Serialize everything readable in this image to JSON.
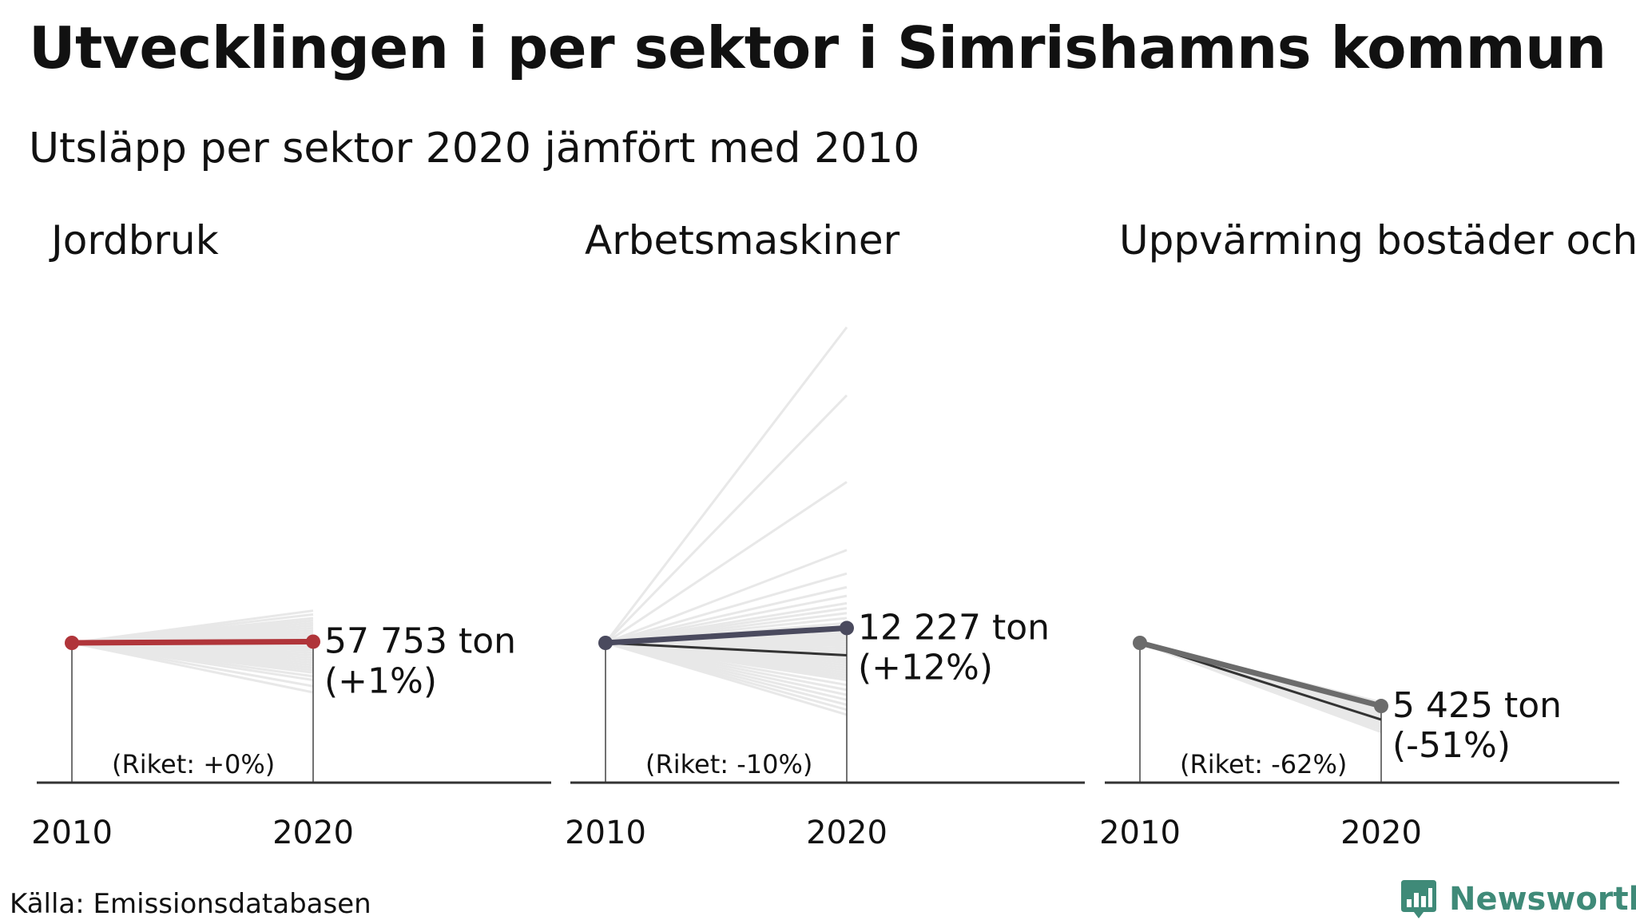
{
  "title": "Utvecklingen i per sektor i Simrishamns kommun",
  "subtitle": "Utsläpp per sektor 2020 jämfört med 2010",
  "source": "Källa: Emissionsdatabasen",
  "brand": {
    "name": "Newsworthy",
    "color": "#3f8a78",
    "icon": "bar-chart-logo-icon"
  },
  "colors": {
    "background_lines": "#e8e8e8",
    "axis": "#333333",
    "national": "#333333"
  },
  "chart_data": [
    {
      "type": "line",
      "title": "Jordbruk",
      "x": [
        "2010",
        "2020"
      ],
      "change_pct": 1,
      "national_change_pct": 0,
      "value_label": "57 753 ton",
      "change_label": "(+1%)",
      "national_label": "(Riket: +0%)",
      "color": "#b0353a",
      "other_municipalities_pct": [
        -40,
        -35,
        -30,
        -27,
        -24,
        -22,
        -20,
        -18,
        -16,
        -14,
        -12,
        -10,
        -8,
        -6,
        -5,
        -4,
        -3,
        -2,
        -1,
        0,
        1,
        2,
        3,
        4,
        5,
        6,
        8,
        10,
        12,
        14,
        16,
        18,
        20,
        23,
        26
      ]
    },
    {
      "type": "line",
      "title": "Arbetsmaskiner",
      "x": [
        "2010",
        "2020"
      ],
      "change_pct": 12,
      "national_change_pct": -10,
      "value_label": "12 227 ton",
      "change_label": "(+12%)",
      "national_label": "(Riket: -10%)",
      "color": "#4a4a5e",
      "other_municipalities_pct": [
        -58,
        -54,
        -50,
        -46,
        -42,
        -38,
        -34,
        -30,
        -28,
        -26,
        -24,
        -22,
        -20,
        -18,
        -16,
        -14,
        -12,
        -10,
        -8,
        -6,
        -4,
        -2,
        0,
        2,
        4,
        6,
        8,
        10,
        13,
        16,
        20,
        24,
        28,
        32,
        38,
        45,
        56,
        75,
        130,
        200,
        255
      ]
    },
    {
      "type": "line",
      "title": "Uppvärming bostäder och",
      "x": [
        "2010",
        "2020"
      ],
      "change_pct": -51,
      "national_change_pct": -62,
      "value_label": "5 425 ton",
      "change_label": "(-51%)",
      "national_label": "(Riket: -62%)",
      "color": "#6b6b6b",
      "other_municipalities_pct": [
        -72,
        -70,
        -68,
        -66,
        -64,
        -62,
        -60,
        -58,
        -56,
        -54,
        -52,
        -50,
        -48
      ]
    }
  ]
}
